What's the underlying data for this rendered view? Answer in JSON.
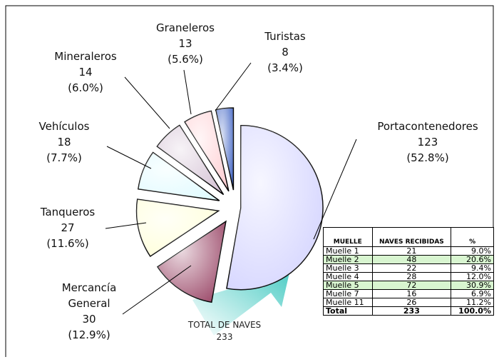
{
  "chart_data": {
    "type": "pie",
    "categories": [
      "Portacontenedores",
      "Mercancía General",
      "Tanqueros",
      "Vehículos",
      "Mineraleros",
      "Graneleros",
      "Turistas"
    ],
    "values": [
      123,
      30,
      27,
      18,
      14,
      13,
      8
    ],
    "percent_labels": [
      "(52.8%)",
      "(12.9%)",
      "(11.6%)",
      "(7.7%)",
      "(6.0%)",
      "(5.6%)",
      "(3.4%)"
    ],
    "colors": [
      "#d4d4ff",
      "#9c4a6a",
      "#ffffd8",
      "#e0fbff",
      "#d6c4d6",
      "#ffd0d4",
      "#4a6cc8"
    ],
    "total_label": "TOTAL DE NAVES",
    "total": 233,
    "table": {
      "header": [
        "MUELLE",
        "NAVES RECIBIDAS",
        "%"
      ],
      "rows": [
        [
          "Muelle 1",
          "21",
          "9.0%"
        ],
        [
          "Muelle 2",
          "48",
          "20.6%"
        ],
        [
          "Muelle 3",
          "22",
          "9.4%"
        ],
        [
          "Muelle 4",
          "28",
          "12.0%"
        ],
        [
          "Muelle 5",
          "72",
          "30.9%"
        ],
        [
          "Muelle 7",
          "16",
          "6.9%"
        ],
        [
          "Muelle 11",
          "26",
          "11.2%"
        ],
        [
          "Total",
          "233",
          "100.0%"
        ]
      ],
      "highlight_rows": [
        1,
        4
      ],
      "highlight_color": "#d8f5d0"
    }
  }
}
